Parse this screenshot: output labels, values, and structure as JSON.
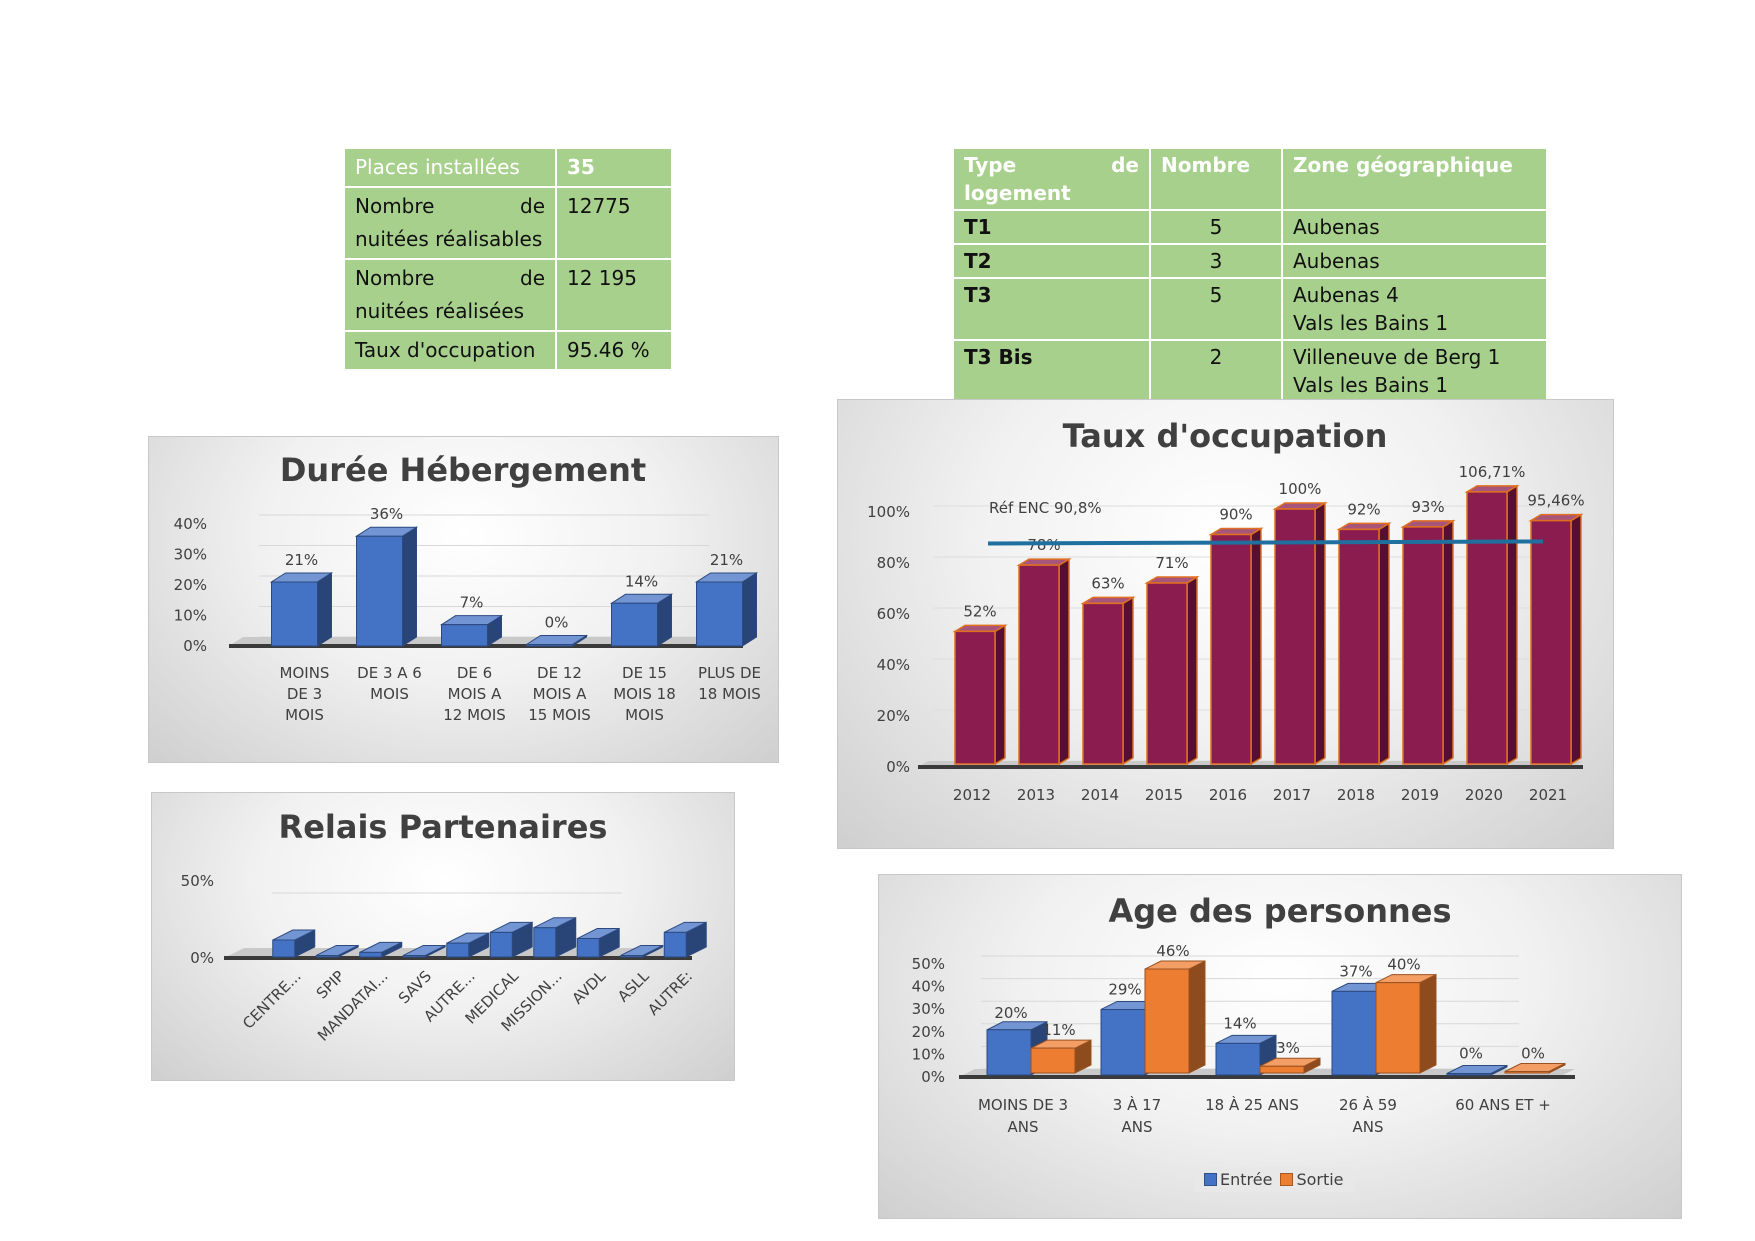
{
  "table_places": {
    "rows": [
      {
        "label": "Places installées",
        "value": "35"
      },
      {
        "label": "Nombre de nuitées réalisables",
        "value": "12775"
      },
      {
        "label": "Nombre de nuitées réalisées",
        "value": "12 195"
      },
      {
        "label": "Taux d'occupation",
        "value": "95.46 %"
      }
    ]
  },
  "table_logement": {
    "headers": [
      "Type de logement",
      "Nombre",
      "Zone géographique"
    ],
    "rows": [
      {
        "type": "T1",
        "nombre": "5",
        "zone_lines": [
          "Aubenas"
        ]
      },
      {
        "type": "T2",
        "nombre": "3",
        "zone_lines": [
          "Aubenas"
        ]
      },
      {
        "type": "T3",
        "nombre": "5",
        "zone_lines": [
          "Aubenas 4",
          "Vals les Bains 1"
        ]
      },
      {
        "type": "T3 Bis",
        "nombre": "2",
        "zone_lines": [
          "Villeneuve de Berg 1",
          "Vals les Bains 1"
        ]
      }
    ]
  },
  "chart_data": [
    {
      "id": "duree",
      "type": "bar",
      "title": "Durée Hébergement",
      "categories": [
        [
          "MOINS",
          "DE 3",
          "MOIS"
        ],
        [
          "DE 3 A 6",
          "MOIS"
        ],
        [
          "DE 6",
          "MOIS A",
          "12 MOIS"
        ],
        [
          "DE 12",
          "MOIS A",
          "15 MOIS"
        ],
        [
          "DE 15",
          "MOIS 18",
          "MOIS"
        ],
        [
          "PLUS DE",
          "18 MOIS"
        ]
      ],
      "values": [
        21,
        36,
        7,
        0,
        14,
        21
      ],
      "data_labels": [
        "21%",
        "36%",
        "7%",
        "0%",
        "14%",
        "21%"
      ],
      "yticks": [
        "0%",
        "10%",
        "20%",
        "30%",
        "40%"
      ],
      "ylim": [
        0,
        40
      ],
      "color": "#4472c4",
      "style": "3d"
    },
    {
      "id": "relais",
      "type": "bar",
      "title": "Relais Partenaires",
      "categories": [
        "CENTRE...",
        "SPIP",
        "MANDATAI...",
        "SAVS",
        "AUTRE...",
        "MEDICAL",
        "MISSION...",
        "AVDL",
        "ASLL",
        "AUTRE:"
      ],
      "values": [
        11,
        1,
        3,
        1,
        9,
        16,
        19,
        12,
        1,
        16
      ],
      "yticks": [
        "0%",
        "50%"
      ],
      "ylim": [
        0,
        50
      ],
      "color": "#4472c4",
      "style": "3d"
    },
    {
      "id": "taux",
      "type": "bar",
      "title": "Taux d'occupation",
      "categories": [
        "2012",
        "2013",
        "2014",
        "2015",
        "2016",
        "2017",
        "2018",
        "2019",
        "2020",
        "2021"
      ],
      "values": [
        52,
        78,
        63,
        71,
        90,
        100,
        92,
        93,
        106.71,
        95.46
      ],
      "data_labels": [
        "52%",
        "78%",
        "63%",
        "71%",
        "90%",
        "100%",
        "92%",
        "93%",
        "106,71%",
        "95,46%"
      ],
      "yticks": [
        "0%",
        "20%",
        "40%",
        "60%",
        "80%",
        "100%"
      ],
      "ylim": [
        0,
        100
      ],
      "reference": {
        "label": "Réf ENC 90,8%",
        "value": 90.8,
        "color": "#1f6f9f"
      },
      "color": "#8b1c4f",
      "edge_color": "#e07020",
      "style": "3d"
    },
    {
      "id": "age",
      "type": "bar",
      "title": "Age des personnes",
      "categories": [
        [
          "MOINS DE 3",
          "ANS"
        ],
        [
          "3 À 17",
          "ANS"
        ],
        [
          "18 À 25 ANS"
        ],
        [
          "26 À 59",
          "ANS"
        ],
        [
          "60 ANS ET  +"
        ]
      ],
      "series": [
        {
          "name": "Entrée",
          "values": [
            20,
            29,
            14,
            37,
            0
          ],
          "data_labels": [
            "20%",
            "29%",
            "14%",
            "37%",
            "0%"
          ],
          "color": "#4472c4"
        },
        {
          "name": "Sortie",
          "values": [
            11,
            46,
            3,
            40,
            0
          ],
          "data_labels": [
            "11%",
            "46%",
            "3%",
            "40%",
            "0%"
          ],
          "color": "#ed7d31"
        }
      ],
      "yticks": [
        "0%",
        "10%",
        "20%",
        "30%",
        "40%",
        "50%"
      ],
      "ylim": [
        0,
        50
      ],
      "legend": "bottom",
      "style": "3d"
    }
  ]
}
